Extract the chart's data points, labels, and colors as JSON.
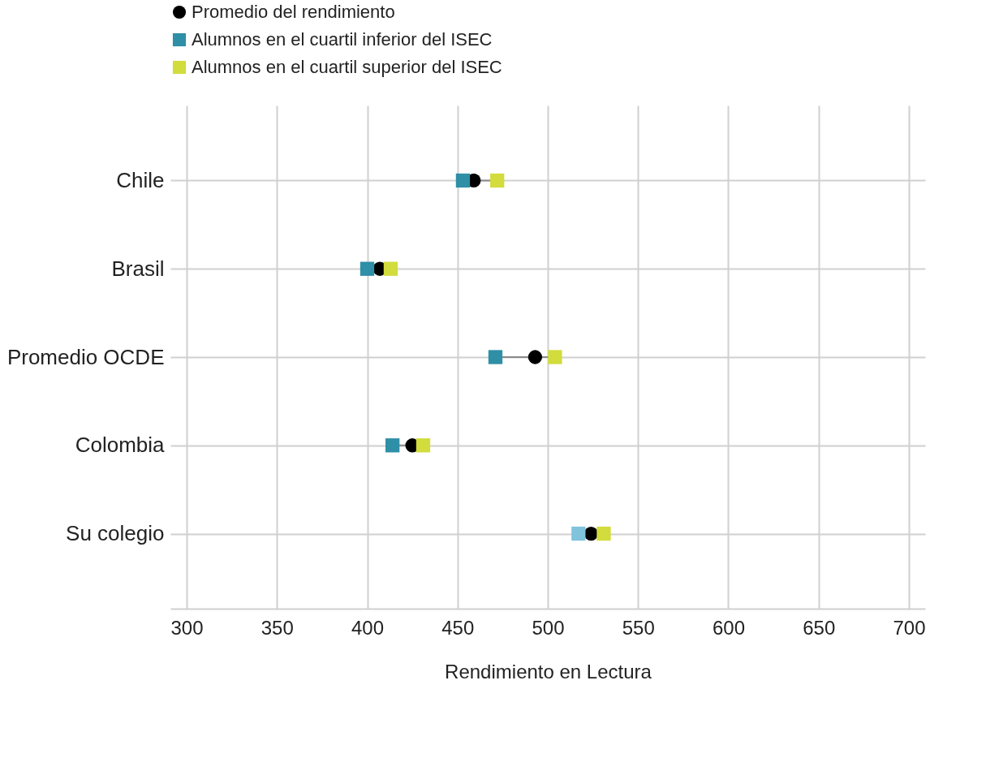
{
  "chart_data": {
    "type": "scatter",
    "orientation": "horizontal",
    "xlabel": "Rendimiento en Lectura",
    "categories": [
      "Chile",
      "Brasil",
      "Promedio OCDE",
      "Colombia",
      "Su colegio"
    ],
    "series": [
      {
        "name": "Promedio del rendimiento",
        "color": "#000000",
        "marker": "circle",
        "values": [
          459,
          407,
          493,
          425,
          524
        ]
      },
      {
        "name": "Alumnos en el cuartil inferior del ISEC",
        "color": "#2e8fa6",
        "marker": "square",
        "colors": [
          "#2e8fa6",
          "#2e8fa6",
          "#2e8fa6",
          "#2e8fa6",
          "#7fc3dc"
        ],
        "values": [
          453,
          400,
          471,
          414,
          517
        ]
      },
      {
        "name": "Alumnos en el cuartil superior del ISEC",
        "color": "#d2dc3c",
        "marker": "square",
        "values": [
          472,
          413,
          504,
          431,
          531
        ]
      }
    ],
    "xlim": [
      291,
      709
    ],
    "xticks": [
      300,
      350,
      400,
      450,
      500,
      550,
      600,
      650,
      700
    ],
    "grid": true,
    "legend": "top"
  }
}
